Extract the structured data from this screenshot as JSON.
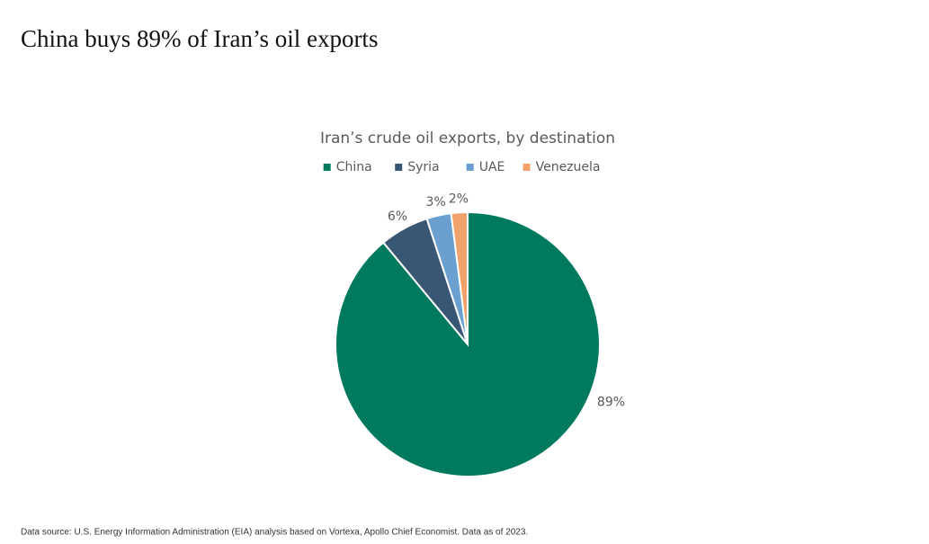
{
  "header": {
    "title": "China buys 89% of Iran’s oil exports"
  },
  "chart_data": {
    "type": "pie",
    "title": "Iran’s crude oil exports, by destination",
    "categories": [
      "China",
      "Syria",
      "UAE",
      "Venezuela"
    ],
    "values": [
      89,
      6,
      3,
      2
    ],
    "value_labels": [
      "89%",
      "6%",
      "3%",
      "2%"
    ],
    "colors": [
      "#007a5e",
      "#3a5675",
      "#6a9fd0",
      "#f0a26a"
    ],
    "legend": "top"
  },
  "footer": {
    "source": "Data source: U.S. Energy Information Administration (EIA) analysis based on Vortexa, Apollo Chief Economist. Data as of 2023."
  }
}
